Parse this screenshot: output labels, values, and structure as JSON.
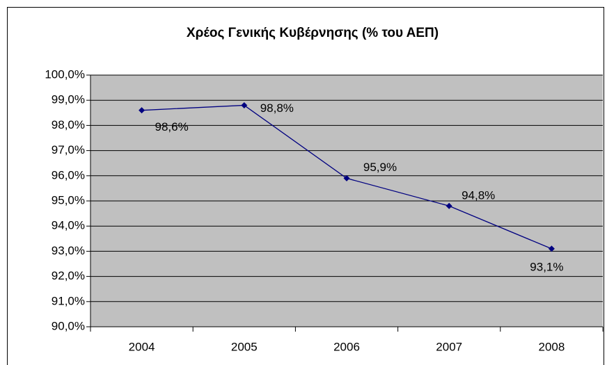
{
  "chart_data": {
    "type": "line",
    "title": "Χρέος Γενικής Κυβέρνησης (% του ΑΕΠ)",
    "categories": [
      "2004",
      "2005",
      "2006",
      "2007",
      "2008"
    ],
    "values": [
      98.6,
      98.8,
      95.9,
      94.8,
      93.1
    ],
    "value_labels": [
      "98,6%",
      "98,8%",
      "95,9%",
      "94,8%",
      "93,1%"
    ],
    "color": "#000080",
    "ylim": [
      90,
      100
    ],
    "yticks": [
      {
        "value": 90,
        "label": "90,0%"
      },
      {
        "value": 91,
        "label": "91,0%"
      },
      {
        "value": 92,
        "label": "92,0%"
      },
      {
        "value": 93,
        "label": "93,0%"
      },
      {
        "value": 94,
        "label": "94,0%"
      },
      {
        "value": 95,
        "label": "95,0%"
      },
      {
        "value": 96,
        "label": "96,0%"
      },
      {
        "value": 97,
        "label": "97,0%"
      },
      {
        "value": 98,
        "label": "98,0%"
      },
      {
        "value": 99,
        "label": "99,0%"
      },
      {
        "value": 100,
        "label": "100,0%"
      }
    ],
    "grid": true
  }
}
